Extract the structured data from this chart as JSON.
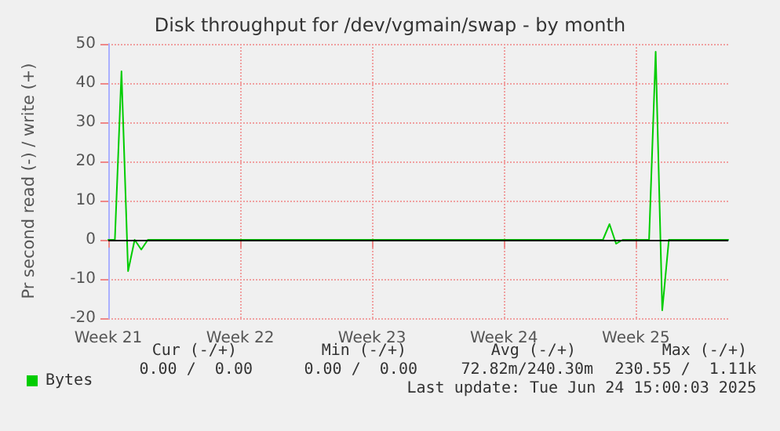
{
  "chart_data": {
    "type": "line",
    "title": "Disk throughput for /dev/vgmain/swap - by month",
    "ylabel": "Pr second read (-) / write (+)",
    "categories": [
      "Week 21",
      null,
      null,
      null,
      null,
      null,
      null,
      null,
      null,
      null,
      null,
      null,
      null,
      null,
      null,
      null,
      null,
      null,
      null,
      null,
      "Week 22",
      null,
      null,
      null,
      null,
      null,
      null,
      null,
      null,
      null,
      null,
      null,
      null,
      null,
      null,
      null,
      null,
      null,
      null,
      null,
      "Week 23",
      null,
      null,
      null,
      null,
      null,
      null,
      null,
      null,
      null,
      null,
      null,
      null,
      null,
      null,
      null,
      null,
      null,
      null,
      null,
      "Week 24",
      null,
      null,
      null,
      null,
      null,
      null,
      null,
      null,
      null,
      null,
      null,
      null,
      null,
      null,
      null,
      null,
      null,
      null,
      null,
      "Week 25",
      null,
      null,
      null,
      null,
      null,
      null,
      null,
      null,
      null,
      null,
      null,
      null,
      null,
      null
    ],
    "series": [
      {
        "name": "Bytes",
        "color": "#00cc00",
        "values": [
          0,
          0,
          43,
          -8,
          0,
          -2.5,
          0,
          0,
          0,
          0,
          0,
          0,
          0,
          0,
          0,
          0,
          0,
          0,
          0,
          0,
          0,
          0,
          0,
          0,
          0,
          0,
          0,
          0,
          0,
          0,
          0,
          0,
          0,
          0,
          0,
          0,
          0,
          0,
          0,
          0,
          0,
          0,
          0,
          0,
          0,
          0,
          0,
          0,
          0,
          0,
          0,
          0,
          0,
          0,
          0,
          0,
          0,
          0,
          0,
          0,
          0,
          0,
          0,
          0,
          0,
          0,
          0,
          0,
          0,
          0,
          0,
          0,
          0,
          0,
          0,
          0,
          4,
          -1,
          0,
          0,
          0,
          0,
          0,
          48,
          -18,
          0,
          0,
          0,
          0,
          0,
          0,
          0,
          0,
          0,
          0
        ]
      }
    ],
    "ylim": [
      -20,
      50
    ],
    "yticks": [
      -20,
      -10,
      0,
      10,
      20,
      30,
      40,
      50
    ],
    "ref_lines": [
      {
        "axis": "y",
        "value": 0,
        "label": null,
        "color": "#000000"
      }
    ],
    "annotations": [
      "Cur (-/+)",
      "Min (-/+)",
      "Avg (-/+)",
      "Max (-/+)",
      "0.00 /  0.00",
      "0.00 /  0.00",
      "72.82m/240.30m",
      "230.55 /  1.11k",
      "Last update: Tue Jun 24 15:00:03 2025"
    ],
    "grid": true,
    "legend": "bottom left",
    "marker": "none",
    "line_style": "solid"
  }
}
